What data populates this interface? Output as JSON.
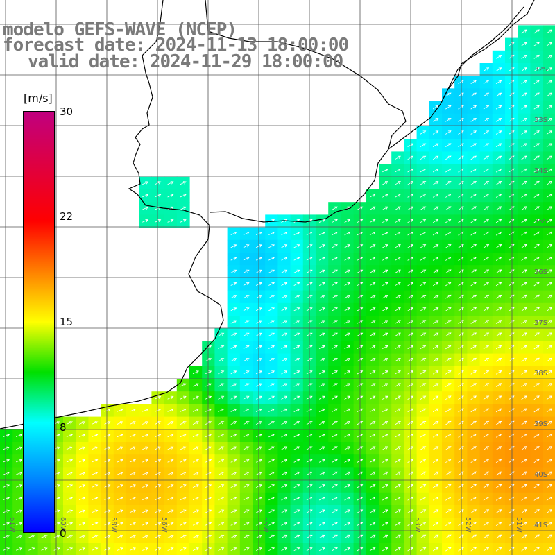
{
  "header": {
    "line1": "modelo GEFS-WAVE (NCEP)",
    "line2": "forecast date: 2024-11-13 18:00:00",
    "line3": "valid date: 2024-11-29 18:00:00"
  },
  "colorbar": {
    "unit": "[m/s]",
    "ticks": [
      "30",
      "22",
      "15",
      "8",
      "0"
    ],
    "colors": [
      "#c0007f",
      "#ff0000",
      "#ff8000",
      "#ffff00",
      "#00e000",
      "#00ffff",
      "#0080ff",
      "#0000ff"
    ]
  },
  "map": {
    "lat_labels": [
      "32S",
      "33S",
      "34S",
      "35S",
      "36S",
      "37S",
      "38S",
      "39S",
      "40S",
      "41S"
    ],
    "lon_labels": [
      "61W",
      "60W",
      "58W",
      "56W",
      "55W",
      "53W",
      "52W",
      "51W"
    ],
    "wind_direction": "northeast"
  }
}
